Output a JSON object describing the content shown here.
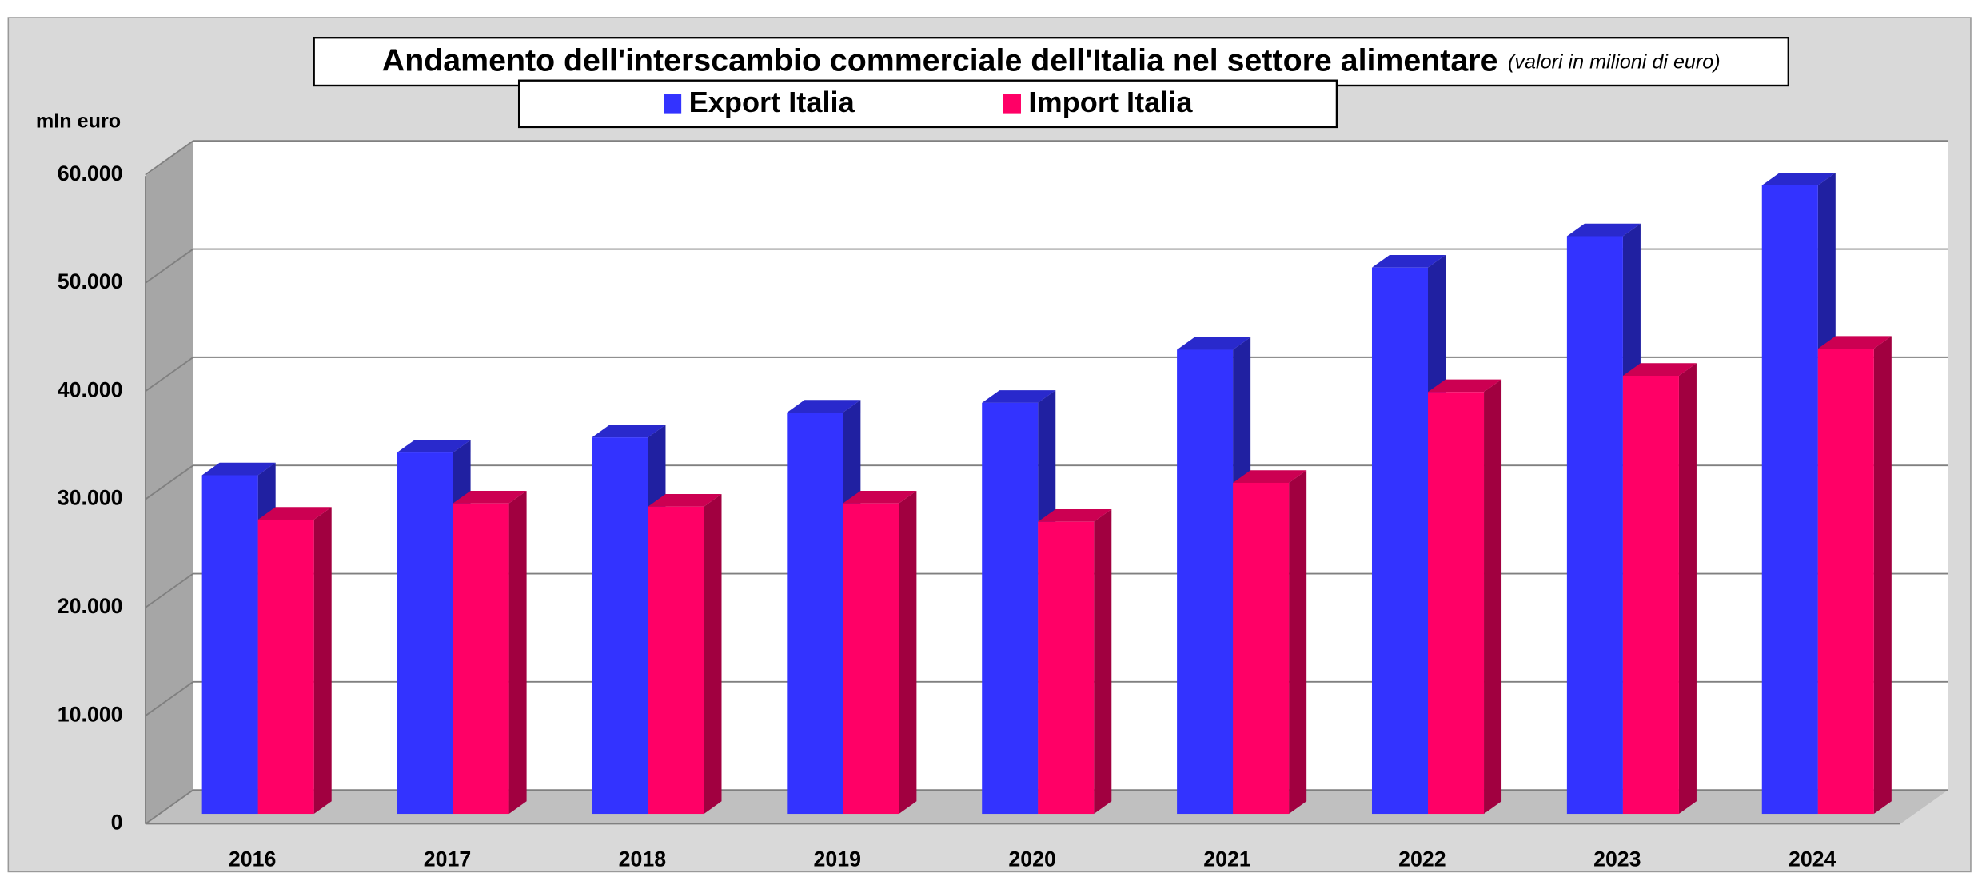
{
  "chart_data": {
    "type": "bar3d",
    "title": "Andamento dell'interscambio commerciale dell'Italia nel settore alimentare",
    "subtitle": "(valori in milioni di euro)",
    "y_axis_label": "mln euro",
    "categories": [
      "2016",
      "2017",
      "2018",
      "2019",
      "2020",
      "2021",
      "2022",
      "2023",
      "2024"
    ],
    "series": [
      {
        "name": "Export Italia",
        "color": "#3333ff",
        "values": [
          31300,
          33400,
          34800,
          37100,
          38000,
          42900,
          50500,
          53400,
          58100
        ]
      },
      {
        "name": "Import Italia",
        "color": "#ff0066",
        "values": [
          27200,
          28700,
          28400,
          28700,
          27000,
          30600,
          39000,
          40500,
          43000
        ]
      }
    ],
    "ylim": [
      0,
      60000
    ],
    "yticks": [
      0,
      {
        "value": 10000,
        "label": "10.000"
      },
      {
        "value": 20000,
        "label": "20.000"
      },
      {
        "value": 30000,
        "label": "30.000"
      },
      {
        "value": 40000,
        "label": "40.000"
      },
      {
        "value": 50000,
        "label": "50.000"
      },
      {
        "value": 60000,
        "label": "60.000"
      }
    ],
    "grid": true
  }
}
